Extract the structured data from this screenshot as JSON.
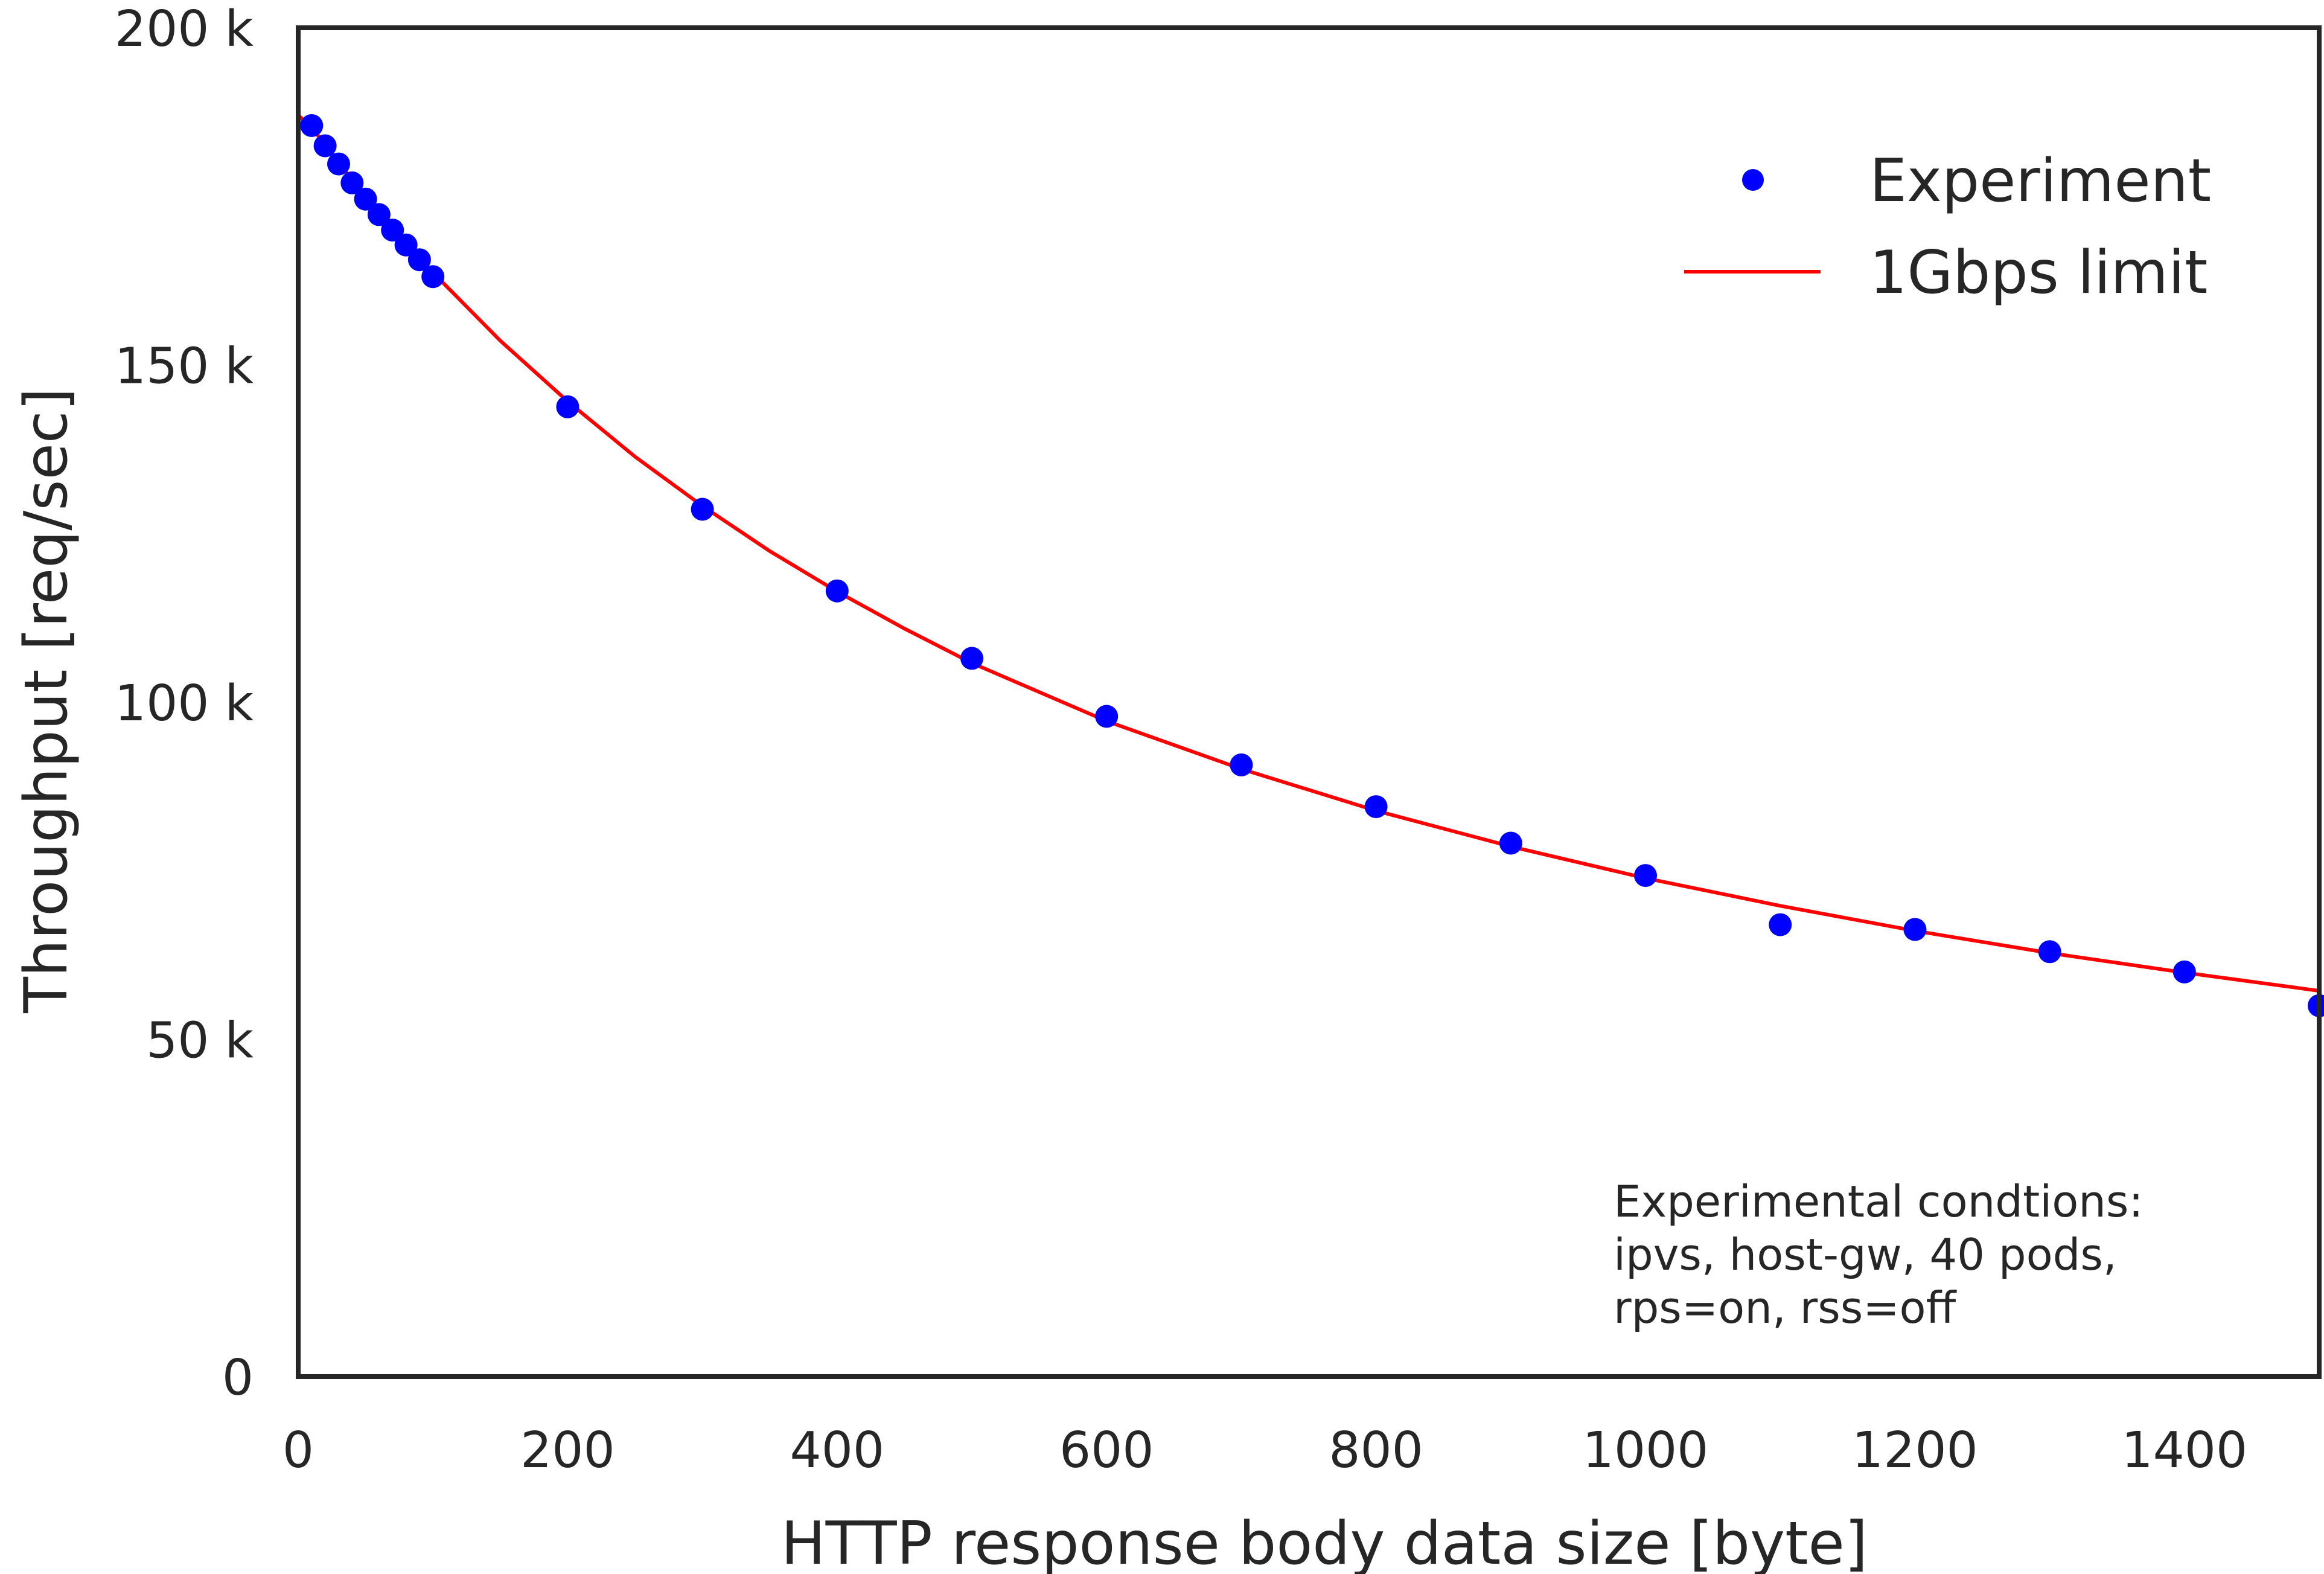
{
  "chart_data": {
    "type": "line",
    "xlabel": "HTTP response body data size [byte]",
    "ylabel": "Throughput [req/sec]",
    "xlim": [
      0,
      1500
    ],
    "ylim": [
      0,
      200000
    ],
    "x_ticks": [
      0,
      200,
      400,
      600,
      800,
      1000,
      1200,
      1400
    ],
    "x_tick_labels": [
      "0",
      "200",
      "400",
      "600",
      "800",
      "1000",
      "1200",
      "1400"
    ],
    "y_ticks": [
      0,
      50000,
      100000,
      150000,
      200000
    ],
    "y_tick_labels": [
      "0",
      "50 k",
      "100 k",
      "150 k",
      "200 k"
    ],
    "grid": false,
    "legend_position": "top-right",
    "series": [
      {
        "name": "Experiment",
        "kind": "scatter",
        "color": "#0000ff",
        "x": [
          10,
          20,
          30,
          40,
          50,
          60,
          70,
          80,
          90,
          100,
          200,
          300,
          400,
          500,
          600,
          700,
          800,
          900,
          1000,
          1100,
          1200,
          1300,
          1400,
          1500
        ],
        "y": [
          185500,
          182500,
          179800,
          177000,
          174600,
          172300,
          170000,
          167800,
          165600,
          163100,
          143800,
          128600,
          116500,
          106500,
          97900,
          90700,
          84500,
          79100,
          74300,
          67000,
          66300,
          63000,
          60000,
          55000
        ]
      },
      {
        "name": "1Gbps limit",
        "kind": "line",
        "color": "#ff0000",
        "x": [
          0,
          10,
          20,
          30,
          40,
          50,
          60,
          70,
          80,
          90,
          100,
          150,
          200,
          250,
          300,
          350,
          400,
          450,
          500,
          600,
          700,
          800,
          900,
          1000,
          1100,
          1200,
          1300,
          1400,
          1500
        ],
        "y": [
          187000,
          185300,
          182600,
          180000,
          177500,
          175000,
          172600,
          170300,
          168000,
          165900,
          163700,
          153600,
          144600,
          136400,
          129100,
          122400,
          116400,
          110900,
          105800,
          97200,
          90100,
          83900,
          78600,
          73900,
          69800,
          66100,
          62800,
          59900,
          57200
        ]
      }
    ],
    "annotation": [
      "Experimental condtions:",
      "ipvs, host-gw, 40 pods,",
      "rps=on, rss=off"
    ]
  }
}
